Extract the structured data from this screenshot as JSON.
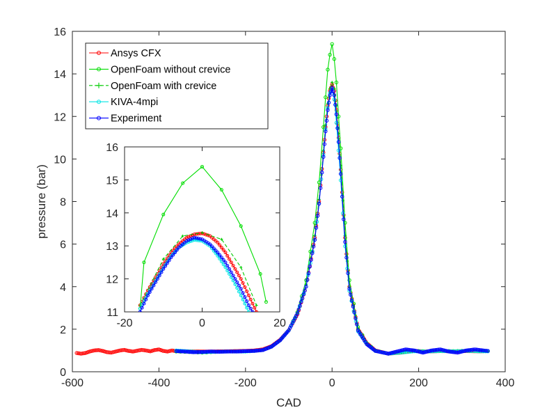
{
  "chart_data": [
    {
      "type": "line",
      "xlabel": "CAD",
      "ylabel": "pressure (bar)",
      "xlim": [
        -600,
        400
      ],
      "ylim": [
        0,
        16
      ],
      "xticks": [
        -600,
        -400,
        -200,
        0,
        200,
        400
      ],
      "yticks": [
        0,
        2,
        4,
        6,
        8,
        10,
        12,
        14,
        16
      ],
      "grid": false,
      "legend_position": "top-left",
      "series": [
        {
          "name": "Ansys CFX",
          "color": "#ff0000",
          "marker": "circle",
          "x": [
            -590,
            -580,
            -570,
            -560,
            -550,
            -540,
            -530,
            -520,
            -510,
            -500,
            -490,
            -480,
            -470,
            -460,
            -450,
            -440,
            -430,
            -420,
            -410,
            -400,
            -390,
            -380,
            -370,
            -360,
            -300,
            -250,
            -200,
            -180,
            -160,
            -140,
            -120,
            -100,
            -80,
            -60,
            -40,
            -30,
            -20,
            -15,
            -10,
            -5,
            0,
            5,
            10,
            15,
            20,
            30,
            40,
            60,
            80,
            100,
            130,
            160,
            190,
            220,
            250,
            280,
            310,
            340,
            360
          ],
          "values": [
            0.88,
            0.85,
            0.88,
            0.95,
            1.0,
            1.02,
            0.98,
            0.92,
            0.9,
            0.95,
            1.0,
            1.03,
            0.98,
            0.95,
            0.99,
            1.03,
            1.0,
            0.96,
            1.02,
            1.05,
            0.98,
            0.95,
            1.0,
            0.97,
            0.95,
            0.96,
            0.98,
            1.0,
            1.05,
            1.2,
            1.5,
            1.95,
            2.7,
            4.0,
            6.3,
            8.0,
            10.3,
            11.5,
            12.5,
            13.2,
            13.5,
            13.2,
            12.3,
            11.0,
            9.5,
            6.3,
            4.0,
            2.0,
            1.35,
            1.0,
            0.85,
            0.9,
            0.98,
            0.95,
            0.97,
            0.96,
            0.97,
            0.96,
            0.97
          ]
        },
        {
          "name": "OpenFoam without crevice",
          "color": "#00dd00",
          "marker": "circle",
          "x": [
            -360,
            -300,
            -250,
            -200,
            -180,
            -160,
            -140,
            -120,
            -100,
            -80,
            -60,
            -40,
            -30,
            -20,
            -15,
            -10,
            -5,
            0,
            5,
            10,
            15,
            20,
            30,
            40,
            60,
            80,
            100,
            130,
            160,
            190,
            220,
            250,
            280,
            310,
            340,
            360
          ],
          "values": [
            0.95,
            0.9,
            0.95,
            0.95,
            0.98,
            1.02,
            1.18,
            1.48,
            1.95,
            2.8,
            4.3,
            7.0,
            8.9,
            11.5,
            12.9,
            14.2,
            14.9,
            15.4,
            14.7,
            13.6,
            12.0,
            10.5,
            7.0,
            4.3,
            2.1,
            1.35,
            1.0,
            0.85,
            0.92,
            0.98,
            0.96,
            0.98,
            0.97,
            0.99,
            0.97,
            0.97
          ]
        },
        {
          "name": "OpenFoam with crevice",
          "color": "#00cc00",
          "marker": "plus",
          "x": [
            -360,
            -300,
            -250,
            -200,
            -180,
            -160,
            -140,
            -120,
            -100,
            -80,
            -60,
            -40,
            -30,
            -20,
            -15,
            -10,
            -5,
            0,
            5,
            10,
            15,
            20,
            30,
            40,
            60,
            80,
            100,
            130,
            160,
            190,
            220,
            250,
            280,
            310,
            340,
            360
          ],
          "values": [
            0.95,
            0.9,
            0.95,
            0.95,
            0.98,
            1.02,
            1.18,
            1.48,
            1.95,
            2.8,
            4.1,
            6.4,
            8.1,
            10.4,
            11.6,
            12.6,
            13.3,
            13.6,
            13.3,
            12.5,
            11.2,
            9.7,
            6.4,
            4.0,
            2.0,
            1.35,
            1.0,
            0.85,
            0.92,
            0.98,
            0.96,
            0.98,
            0.97,
            0.99,
            0.97,
            0.97
          ]
        },
        {
          "name": "KIVA-4mpi",
          "color": "#00e5e5",
          "marker": "circle",
          "x": [
            -360,
            -300,
            -250,
            -200,
            -180,
            -160,
            -140,
            -120,
            -100,
            -80,
            -60,
            -40,
            -30,
            -20,
            -15,
            -10,
            -5,
            0,
            5,
            10,
            15,
            20,
            30,
            40,
            60,
            80,
            100,
            130,
            160,
            190,
            220,
            250,
            280,
            310,
            340,
            360
          ],
          "values": [
            1.0,
            0.92,
            0.95,
            0.95,
            0.98,
            1.02,
            1.18,
            1.48,
            1.95,
            2.75,
            4.0,
            6.2,
            7.9,
            10.2,
            11.4,
            12.4,
            13.1,
            13.3,
            12.8,
            11.7,
            10.4,
            9.0,
            5.9,
            3.8,
            1.9,
            1.3,
            0.98,
            0.85,
            0.9,
            0.96,
            0.95,
            0.97,
            0.96,
            0.98,
            0.96,
            0.96
          ]
        },
        {
          "name": "Experiment",
          "color": "#0000ff",
          "marker": "circle",
          "x": [
            -360,
            -340,
            -320,
            -300,
            -280,
            -260,
            -240,
            -220,
            -200,
            -180,
            -160,
            -140,
            -120,
            -100,
            -80,
            -60,
            -40,
            -30,
            -20,
            -15,
            -10,
            -5,
            0,
            5,
            10,
            15,
            20,
            30,
            40,
            60,
            80,
            100,
            130,
            150,
            170,
            190,
            210,
            230,
            250,
            270,
            290,
            310,
            330,
            350,
            360
          ],
          "values": [
            0.97,
            0.95,
            0.92,
            0.93,
            0.95,
            0.94,
            0.95,
            0.95,
            0.97,
            0.98,
            1.02,
            1.18,
            1.48,
            1.95,
            2.75,
            4.0,
            6.2,
            7.9,
            10.1,
            11.3,
            12.3,
            13.0,
            13.35,
            13.0,
            12.1,
            10.8,
            9.3,
            6.1,
            3.9,
            1.95,
            1.3,
            0.98,
            0.85,
            0.95,
            1.05,
            1.0,
            0.9,
            1.0,
            1.05,
            0.95,
            0.9,
            1.0,
            1.05,
            1.0,
            0.98
          ]
        }
      ]
    },
    {
      "type": "line",
      "xlabel": "",
      "ylabel": "",
      "xlim": [
        -20,
        20
      ],
      "ylim": [
        11,
        16
      ],
      "xticks": [
        -20,
        0,
        20
      ],
      "yticks": [
        11,
        12,
        13,
        14,
        15,
        16
      ],
      "grid": false,
      "series": [
        {
          "name": "Ansys CFX",
          "color": "#ff0000",
          "marker": "circle",
          "x": [
            -16,
            -14,
            -12,
            -10,
            -8,
            -6,
            -4,
            -2,
            0,
            2,
            4,
            6,
            8,
            10,
            12,
            14
          ],
          "values": [
            11.2,
            11.65,
            12.05,
            12.45,
            12.8,
            13.05,
            13.25,
            13.35,
            13.38,
            13.3,
            13.1,
            12.8,
            12.4,
            12.0,
            11.5,
            11.0
          ]
        },
        {
          "name": "OpenFoam without crevice",
          "color": "#00dd00",
          "marker": "circle",
          "x": [
            -16,
            -15,
            -10,
            -5,
            0,
            5,
            10,
            15,
            16.5
          ],
          "values": [
            11.1,
            12.5,
            13.95,
            14.9,
            15.4,
            14.7,
            13.6,
            12.15,
            11.3
          ]
        },
        {
          "name": "OpenFoam with crevice",
          "color": "#00cc00",
          "marker": "plus",
          "x": [
            -16,
            -10,
            -5,
            0,
            5,
            10,
            14
          ],
          "values": [
            11.2,
            12.6,
            13.3,
            13.4,
            13.2,
            12.35,
            11.2
          ]
        },
        {
          "name": "KIVA-4mpi",
          "color": "#00e5e5",
          "marker": "circle",
          "x": [
            -16,
            -14,
            -12,
            -10,
            -8,
            -6,
            -4,
            -2,
            0,
            2,
            4,
            6,
            8,
            10,
            12
          ],
          "values": [
            11.1,
            11.55,
            11.95,
            12.35,
            12.7,
            12.95,
            13.1,
            13.18,
            13.15,
            13.0,
            12.7,
            12.35,
            11.95,
            11.5,
            11.0
          ]
        },
        {
          "name": "Experiment",
          "color": "#0000ff",
          "marker": "circle",
          "x": [
            -16,
            -14,
            -12,
            -10,
            -8,
            -6,
            -4,
            -2,
            0,
            2,
            4,
            6,
            8,
            10,
            12,
            13
          ],
          "values": [
            11.0,
            11.5,
            11.9,
            12.3,
            12.65,
            12.95,
            13.15,
            13.25,
            13.2,
            13.05,
            12.8,
            12.5,
            12.1,
            11.7,
            11.2,
            11.0
          ]
        }
      ]
    }
  ]
}
